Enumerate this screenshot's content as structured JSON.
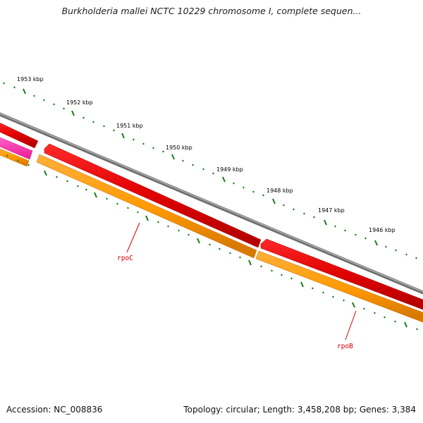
{
  "title": "Burkholderia mallei NCTC 10229 chromosome I, complete sequen...",
  "footer": {
    "accession": "Accession: NC_008836",
    "summary": "Topology: circular; Length: 3,458,208 bp; Genes: 3,384"
  },
  "ruler": {
    "labels": [
      "1953 kbp",
      "1952 kbp",
      "1951 kbp",
      "1950 kbp",
      "1949 kbp",
      "1948 kbp",
      "1947 kbp",
      "1946 kbp"
    ]
  },
  "genes": [
    {
      "name": "rpoC"
    },
    {
      "name": "rpoB"
    }
  ],
  "colors": {
    "backbone": "#8c8c8c",
    "cds_forward": "#ee0000",
    "cds_other": "#ff3399",
    "gene_track": "#ff9900",
    "tick": "#1a7a1a",
    "gene_label": "#d40000"
  }
}
